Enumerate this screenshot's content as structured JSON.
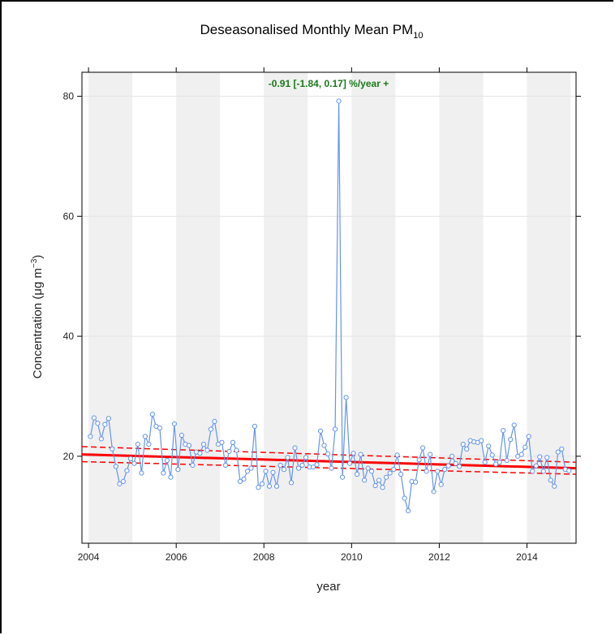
{
  "chart_data": {
    "type": "line",
    "title_main": "Deseasonalised Monthly Mean PM",
    "title_sub": "10",
    "xlabel": "year",
    "ylabel_main": "Concentration (",
    "ylabel_mu": "μ",
    "ylabel_g": "g m",
    "ylabel_sup": "−3",
    "ylabel_close": ")",
    "xlim": [
      2003.85,
      2015.12
    ],
    "ylim": [
      5.5,
      84
    ],
    "x_ticks": [
      2004,
      2006,
      2008,
      2010,
      2012,
      2014
    ],
    "x_tick_labels": [
      "2004",
      "2006",
      "2008",
      "2010",
      "2012",
      "2014"
    ],
    "y_ticks": [
      20,
      40,
      60,
      80
    ],
    "y_tick_labels": [
      "20",
      "40",
      "60",
      "80"
    ],
    "shaded_years": [
      2004,
      2006,
      2008,
      2010,
      2012,
      2014
    ],
    "annotation": "-0.91 [-1.84, 0.17] %/year +",
    "colors": {
      "series": "#6495ed",
      "trend": "#ff0000",
      "annotation": "#1a7a1a",
      "band": "#f0f0f0",
      "grid": "#e4e4e4"
    },
    "series": [
      {
        "start_year": 2004,
        "step_months": 1,
        "values": [
          23.3,
          26.4,
          25.5,
          22.9,
          25.3,
          26.3,
          21.2,
          18.3,
          15.4,
          15.8,
          17.6,
          19.6,
          18.8,
          22.0,
          17.2,
          23.3,
          22.0,
          27.0,
          25.0,
          24.7,
          17.2,
          19.3,
          16.5,
          25.4,
          17.8,
          23.5,
          22.0,
          21.8,
          18.5,
          20.7,
          20.5,
          22.0,
          21.0,
          24.5,
          25.8,
          22.0,
          22.3,
          18.5,
          20.8,
          22.3,
          21.0,
          15.8,
          16.2,
          17.5,
          18.0,
          25.0,
          14.8,
          15.4,
          17.5,
          15.0,
          17.3,
          15.0,
          18.5,
          17.8,
          19.8,
          15.6,
          21.4,
          18.0,
          18.5,
          19.8,
          18.2,
          18.2,
          18.6,
          24.2,
          21.8,
          20.4,
          18.0,
          24.5,
          79.2,
          16.5,
          29.8,
          18.8,
          20.5,
          17.0,
          20.3,
          16.0,
          18.0,
          17.5,
          15.1,
          16.0,
          14.8,
          16.5,
          17.2,
          17.8,
          20.2,
          17.0,
          13.0,
          10.9,
          15.8,
          15.7,
          19.4,
          21.4,
          17.5,
          20.3,
          14.1,
          17.5,
          15.3,
          17.8,
          18.4,
          20.0,
          18.8,
          18.3,
          22.0,
          21.2,
          22.6,
          22.4,
          22.3,
          22.6,
          19.0,
          21.7,
          20.2,
          18.7,
          19.0,
          24.3,
          19.3,
          22.8,
          25.2,
          20.0,
          20.3,
          21.5,
          23.3,
          17.5,
          18.4,
          19.9,
          17.5,
          19.8,
          16.0,
          15.0,
          20.7,
          21.2,
          17.8,
          17.6
        ]
      }
    ],
    "trend": {
      "x": [
        2003.85,
        2015.12
      ],
      "y": [
        20.3,
        18.0
      ]
    },
    "trend_upper": {
      "x": [
        2003.85,
        2015.12
      ],
      "y": [
        21.6,
        19.0
      ]
    },
    "trend_lower": {
      "x": [
        2003.85,
        2015.12
      ],
      "y": [
        19.1,
        17.0
      ]
    }
  }
}
